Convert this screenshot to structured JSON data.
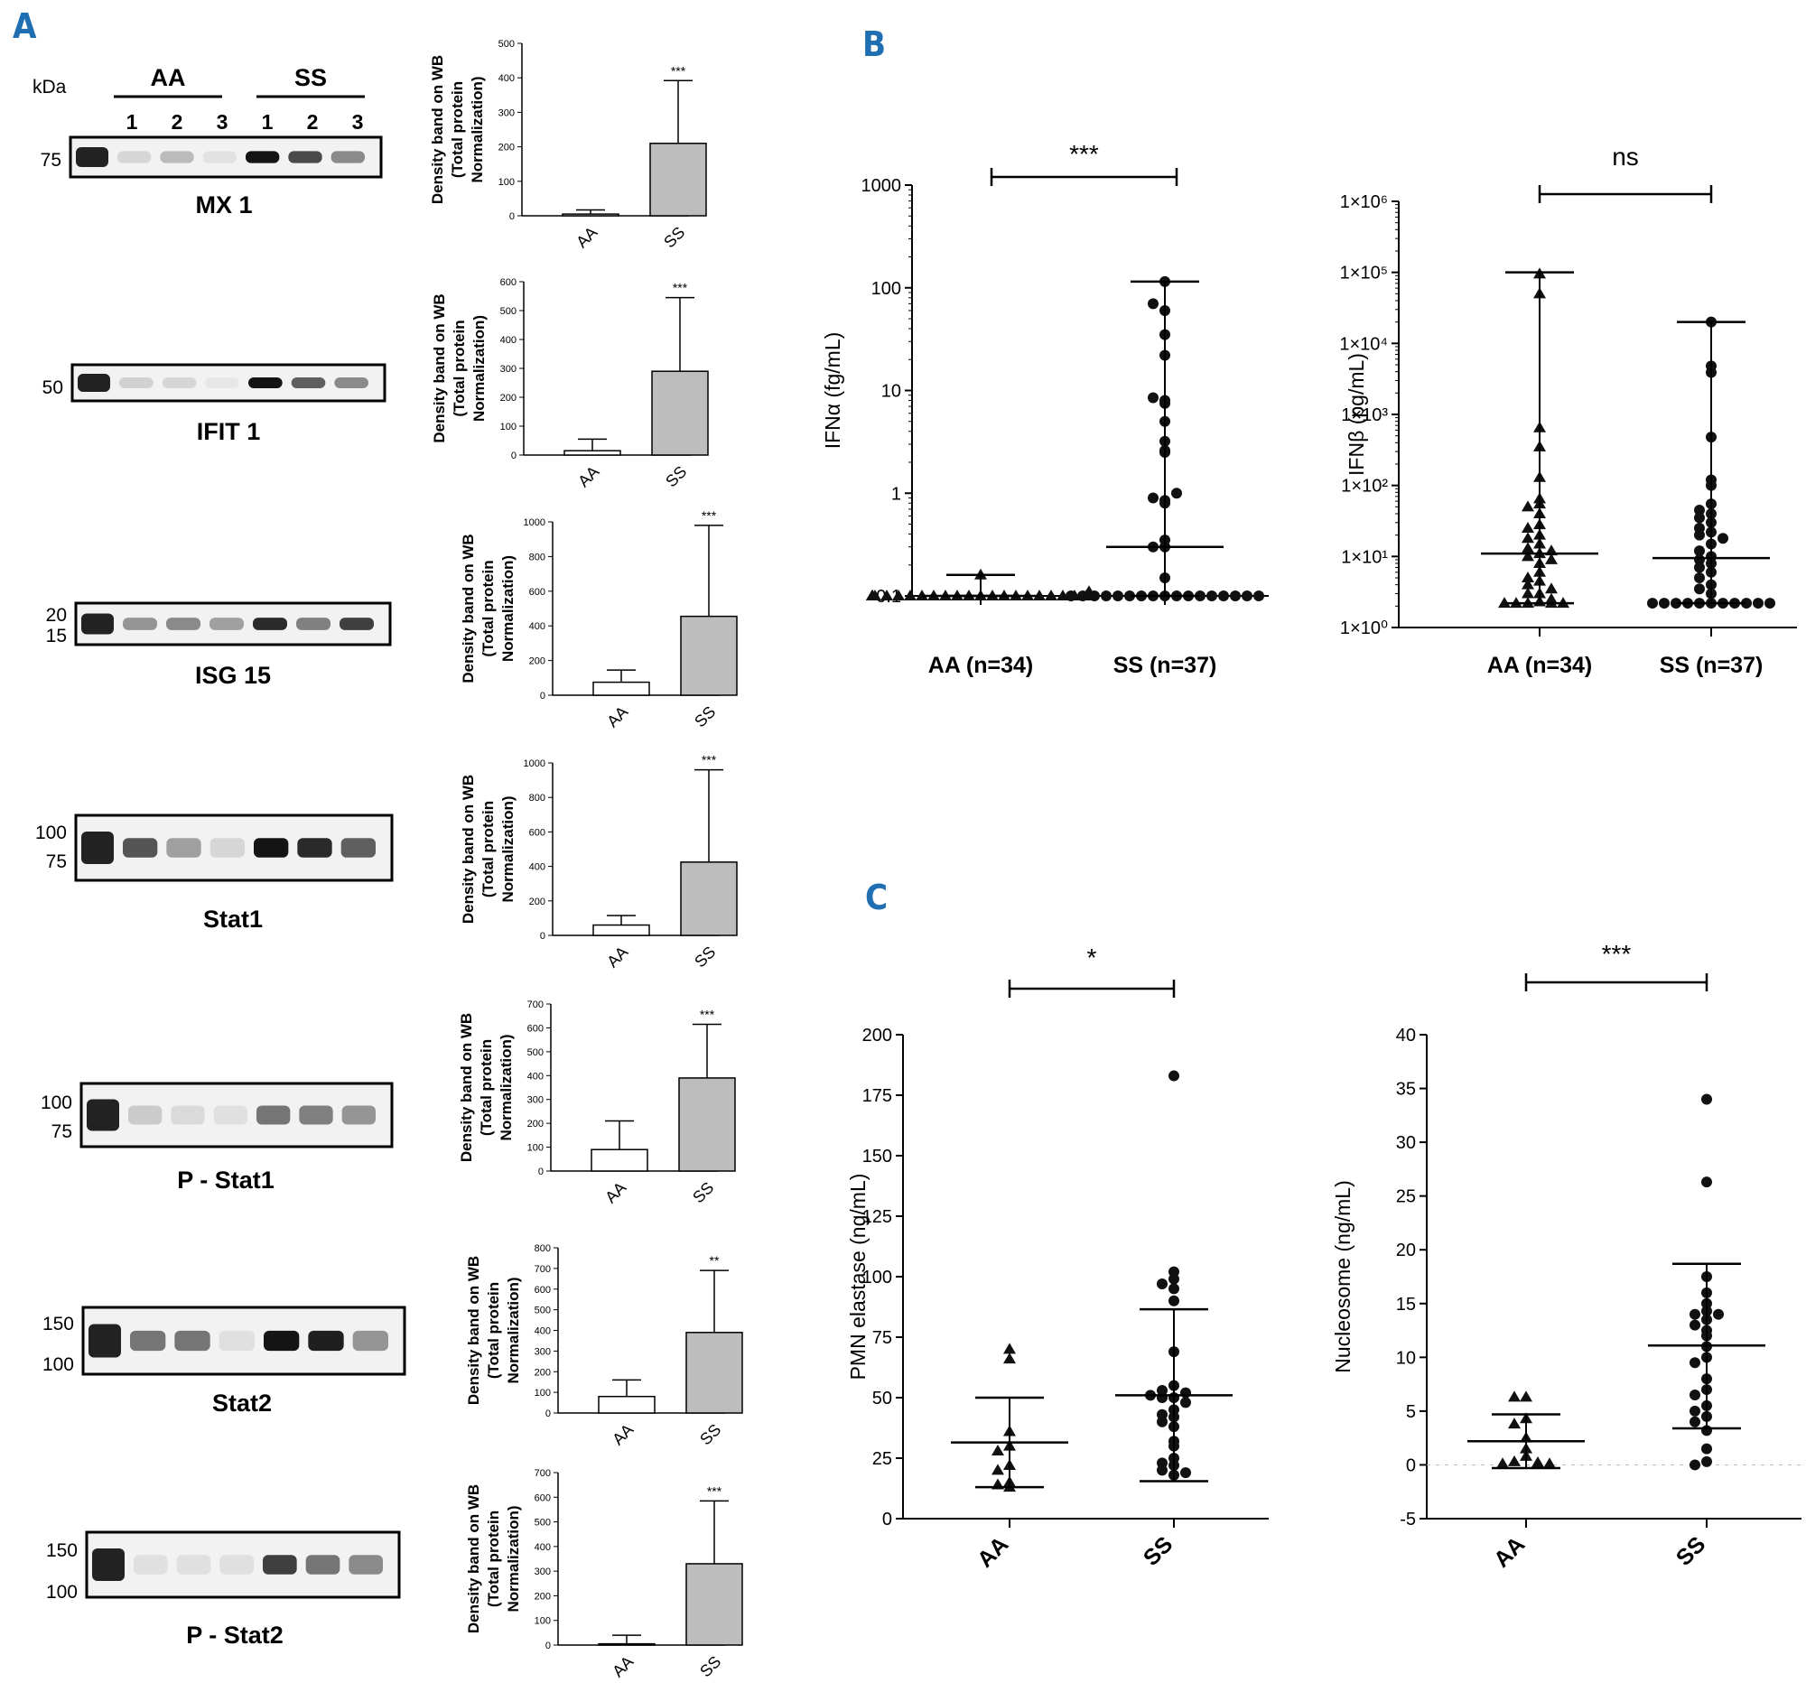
{
  "panels": {
    "A": "A",
    "B": "B",
    "C": "C"
  },
  "blots": {
    "kda_label": "kDa",
    "group_aa": "AA",
    "group_ss": "SS",
    "lanes": [
      "1",
      "2",
      "3",
      "1",
      "2",
      "3"
    ],
    "items": [
      {
        "title": "MX 1",
        "markers": [
          "75"
        ],
        "intensity": [
          0.1,
          0.22,
          0.04,
          1.0,
          0.75,
          0.45
        ]
      },
      {
        "title": "IFIT 1",
        "markers": [
          "50"
        ],
        "intensity": [
          0.12,
          0.1,
          0.02,
          1.0,
          0.65,
          0.45
        ]
      },
      {
        "title": "ISG 15",
        "markers": [
          "20",
          "15"
        ],
        "intensity": [
          0.4,
          0.45,
          0.35,
          0.9,
          0.5,
          0.8
        ]
      },
      {
        "title": "Stat1",
        "markers": [
          "100",
          "75"
        ],
        "intensity": [
          0.7,
          0.35,
          0.1,
          1.0,
          0.9,
          0.65
        ]
      },
      {
        "title": "P - Stat1",
        "markers": [
          "100",
          "75"
        ],
        "intensity": [
          0.15,
          0.08,
          0.05,
          0.55,
          0.5,
          0.4
        ]
      },
      {
        "title": "Stat2",
        "markers": [
          "150",
          "100"
        ],
        "intensity": [
          0.55,
          0.55,
          0.05,
          1.0,
          0.95,
          0.4
        ]
      },
      {
        "title": "P - Stat2",
        "markers": [
          "150",
          "100"
        ],
        "intensity": [
          0.05,
          0.05,
          0.05,
          0.8,
          0.55,
          0.45
        ]
      }
    ]
  },
  "bar_y_title_lines": [
    "Density band on WB",
    "(Total protein",
    "Normalization)"
  ],
  "chart_data": [
    {
      "type": "bar",
      "categories": [
        "AA",
        "SS"
      ],
      "values": [
        5,
        210
      ],
      "errors": [
        12,
        182
      ],
      "ylim": [
        0,
        500
      ],
      "yticks": [
        "0",
        "100",
        "200",
        "300",
        "400",
        "500"
      ],
      "significance": "***",
      "colors": [
        "#ffffff",
        "#bdbdbd"
      ]
    },
    {
      "type": "bar",
      "categories": [
        "AA",
        "SS"
      ],
      "values": [
        15,
        290
      ],
      "errors": [
        40,
        255
      ],
      "ylim": [
        0,
        600
      ],
      "yticks": [
        "0",
        "100",
        "200",
        "300",
        "400",
        "500",
        "600"
      ],
      "significance": "***",
      "colors": [
        "#ffffff",
        "#bdbdbd"
      ]
    },
    {
      "type": "bar",
      "categories": [
        "AA",
        "SS"
      ],
      "values": [
        75,
        455
      ],
      "errors": [
        70,
        525
      ],
      "ylim": [
        0,
        1000
      ],
      "yticks": [
        "0",
        "200",
        "400",
        "600",
        "800",
        "1000"
      ],
      "significance": "***",
      "colors": [
        "#ffffff",
        "#bdbdbd"
      ]
    },
    {
      "type": "bar",
      "categories": [
        "AA",
        "SS"
      ],
      "values": [
        60,
        425
      ],
      "errors": [
        55,
        535
      ],
      "ylim": [
        0,
        1000
      ],
      "yticks": [
        "0",
        "200",
        "400",
        "600",
        "800",
        "1000"
      ],
      "significance": "***",
      "colors": [
        "#ffffff",
        "#bdbdbd"
      ]
    },
    {
      "type": "bar",
      "categories": [
        "AA",
        "SS"
      ],
      "values": [
        90,
        390
      ],
      "errors": [
        120,
        225
      ],
      "ylim": [
        0,
        700
      ],
      "yticks": [
        "0",
        "100",
        "200",
        "300",
        "400",
        "500",
        "600",
        "700"
      ],
      "significance": "***",
      "colors": [
        "#ffffff",
        "#bdbdbd"
      ]
    },
    {
      "type": "bar",
      "categories": [
        "AA",
        "SS"
      ],
      "values": [
        80,
        390
      ],
      "errors": [
        80,
        300
      ],
      "ylim": [
        0,
        800
      ],
      "yticks": [
        "0",
        "100",
        "200",
        "300",
        "400",
        "500",
        "600",
        "700",
        "800"
      ],
      "significance": "**",
      "colors": [
        "#ffffff",
        "#bdbdbd"
      ]
    },
    {
      "type": "bar",
      "categories": [
        "AA",
        "SS"
      ],
      "values": [
        5,
        330
      ],
      "errors": [
        35,
        255
      ],
      "ylim": [
        0,
        700
      ],
      "yticks": [
        "0",
        "100",
        "200",
        "300",
        "400",
        "500",
        "600",
        "700"
      ],
      "significance": "***",
      "colors": [
        "#ffffff",
        "#bdbdbd"
      ]
    },
    {
      "type": "scatter",
      "scale": "log",
      "ylim": [
        0.1,
        1000
      ],
      "ylabel": "IFNα (fg/mL)",
      "yticks": [
        "0.1",
        "1",
        "10",
        "100",
        "1000"
      ],
      "categories": [
        "AA (n=34)",
        "SS (n=37)"
      ],
      "significance": "***",
      "series": [
        {
          "marker": "triangle",
          "median": 0.1,
          "whisker_low": 0.1,
          "whisker_high": 0.16,
          "values": [
            0.1,
            0.1,
            0.1,
            0.1,
            0.1,
            0.1,
            0.1,
            0.1,
            0.1,
            0.1,
            0.1,
            0.1,
            0.1,
            0.1,
            0.1,
            0.1,
            0.1,
            0.1,
            0.1,
            0.1,
            0.1,
            0.1,
            0.1,
            0.1,
            0.1,
            0.1,
            0.1,
            0.1,
            0.1,
            0.1,
            0.1,
            0.1,
            0.11,
            0.16
          ]
        },
        {
          "marker": "circle",
          "median": 0.3,
          "whisker_low": 0.1,
          "whisker_high": 115,
          "values": [
            0.1,
            0.1,
            0.1,
            0.1,
            0.1,
            0.1,
            0.1,
            0.1,
            0.1,
            0.1,
            0.1,
            0.1,
            0.1,
            0.1,
            0.1,
            0.15,
            0.3,
            0.3,
            0.35,
            0.8,
            0.85,
            0.9,
            1.0,
            2.5,
            2.6,
            3.2,
            5.0,
            7.5,
            8.0,
            8.5,
            22,
            35,
            60,
            70,
            115,
            0.1,
            0.1
          ]
        }
      ]
    },
    {
      "type": "scatter",
      "scale": "log",
      "ylim": [
        1,
        1000000
      ],
      "ylabel": "IFNβ (pg/mL)",
      "yticks": [
        "1×10⁰",
        "1×10¹",
        "1×10²",
        "1×10³",
        "1×10⁴",
        "1×10⁵",
        "1×10⁶"
      ],
      "categories": [
        "AA (n=34)",
        "SS (n=37)"
      ],
      "significance": "ns",
      "series": [
        {
          "marker": "triangle",
          "median": 11,
          "whisker_low": 2.2,
          "whisker_high": 100000,
          "values": [
            95000,
            50000,
            650,
            350,
            130,
            65,
            55,
            50,
            40,
            28,
            25,
            20,
            18,
            15,
            13,
            12,
            11,
            10,
            9,
            8,
            6,
            5,
            4.5,
            4,
            3.5,
            3,
            3,
            2.5,
            2.3,
            2.2,
            2.2,
            2.2,
            2.2,
            2.2
          ]
        },
        {
          "marker": "circle",
          "median": 9.5,
          "whisker_low": 2.2,
          "whisker_high": 20000,
          "values": [
            20000,
            4800,
            3900,
            480,
            120,
            100,
            55,
            45,
            40,
            35,
            30,
            25,
            22,
            20,
            18,
            15,
            12,
            10,
            9,
            8,
            7,
            6,
            5,
            4,
            3.5,
            3,
            2.2,
            2.2,
            2.2,
            2.2,
            2.2,
            2.2,
            2.2,
            2.2,
            2.2,
            2.2,
            2.2
          ]
        }
      ]
    },
    {
      "type": "scatter",
      "scale": "linear",
      "ylim": [
        0,
        200
      ],
      "ylabel": "PMN elastase (ng/mL)",
      "yticks": [
        "0",
        "25",
        "50",
        "75",
        "100",
        "125",
        "150",
        "175",
        "200"
      ],
      "categories": [
        "AA",
        "SS"
      ],
      "significance": "*",
      "series": [
        {
          "marker": "triangle",
          "mean": 31.5,
          "sd_low": 13,
          "sd_high": 50,
          "values": [
            70,
            66,
            36,
            30,
            28,
            22,
            20,
            15,
            14,
            13
          ]
        },
        {
          "marker": "circle",
          "mean": 51,
          "sd_low": 15.5,
          "sd_high": 86.5,
          "values": [
            183,
            102,
            99,
            97,
            95,
            90,
            69,
            55,
            53,
            52,
            51,
            50,
            50,
            48,
            45,
            43,
            42,
            40,
            38,
            32,
            30,
            25,
            23,
            22,
            20,
            19,
            18
          ]
        }
      ]
    },
    {
      "type": "scatter",
      "scale": "linear",
      "ylim": [
        -5,
        40
      ],
      "ylabel": "Nucleosome (ng/mL)",
      "yticks": [
        "-5",
        "0",
        "5",
        "10",
        "15",
        "20",
        "25",
        "30",
        "35",
        "40"
      ],
      "categories": [
        "AA",
        "SS"
      ],
      "significance": "***",
      "series": [
        {
          "marker": "triangle",
          "mean": 2.2,
          "sd_low": -0.3,
          "sd_high": 4.7,
          "values": [
            6.3,
            6.3,
            4.3,
            3.8,
            2.5,
            1.5,
            0.8,
            0.3,
            0.2,
            0.1,
            0.1
          ]
        },
        {
          "marker": "circle",
          "mean": 11.1,
          "sd_low": 3.4,
          "sd_high": 18.7,
          "values": [
            34,
            26.3,
            17.5,
            16,
            15,
            14.3,
            14,
            14,
            13.5,
            13,
            12.5,
            12,
            11,
            10,
            9.5,
            8,
            7,
            6.5,
            5.5,
            5,
            4.5,
            4,
            3.2,
            1.5,
            0.3,
            0.0
          ]
        }
      ]
    }
  ]
}
